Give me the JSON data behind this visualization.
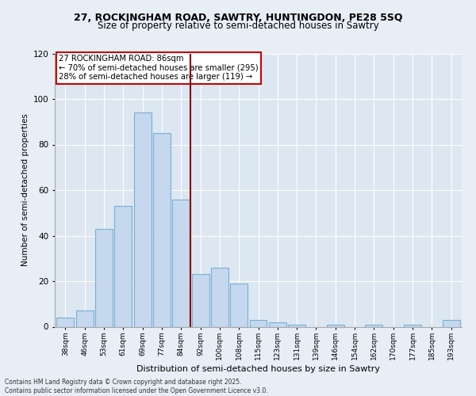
{
  "title1": "27, ROCKINGHAM ROAD, SAWTRY, HUNTINGDON, PE28 5SQ",
  "title2": "Size of property relative to semi-detached houses in Sawtry",
  "xlabel": "Distribution of semi-detached houses by size in Sawtry",
  "ylabel": "Number of semi-detached properties",
  "categories": [
    "38sqm",
    "46sqm",
    "53sqm",
    "61sqm",
    "69sqm",
    "77sqm",
    "84sqm",
    "92sqm",
    "100sqm",
    "108sqm",
    "115sqm",
    "123sqm",
    "131sqm",
    "139sqm",
    "146sqm",
    "154sqm",
    "162sqm",
    "170sqm",
    "177sqm",
    "185sqm",
    "193sqm"
  ],
  "values": [
    4,
    7,
    43,
    53,
    94,
    85,
    56,
    23,
    26,
    19,
    3,
    2,
    1,
    0,
    1,
    0,
    1,
    0,
    1,
    0,
    3
  ],
  "bar_color": "#c5d8ed",
  "bar_edge_color": "#7aafd4",
  "highlight_color": "#8b0000",
  "annotation_text": "27 ROCKINGHAM ROAD: 86sqm\n← 70% of semi-detached houses are smaller (295)\n28% of semi-detached houses are larger (119) →",
  "annotation_box_color": "#cc0000",
  "footer": "Contains HM Land Registry data © Crown copyright and database right 2025.\nContains public sector information licensed under the Open Government Licence v3.0.",
  "ylim": [
    0,
    120
  ],
  "yticks": [
    0,
    20,
    40,
    60,
    80,
    100,
    120
  ],
  "background_color": "#e8eef5",
  "plot_background_color": "#dce7f2",
  "highlight_bar_idx": 6
}
